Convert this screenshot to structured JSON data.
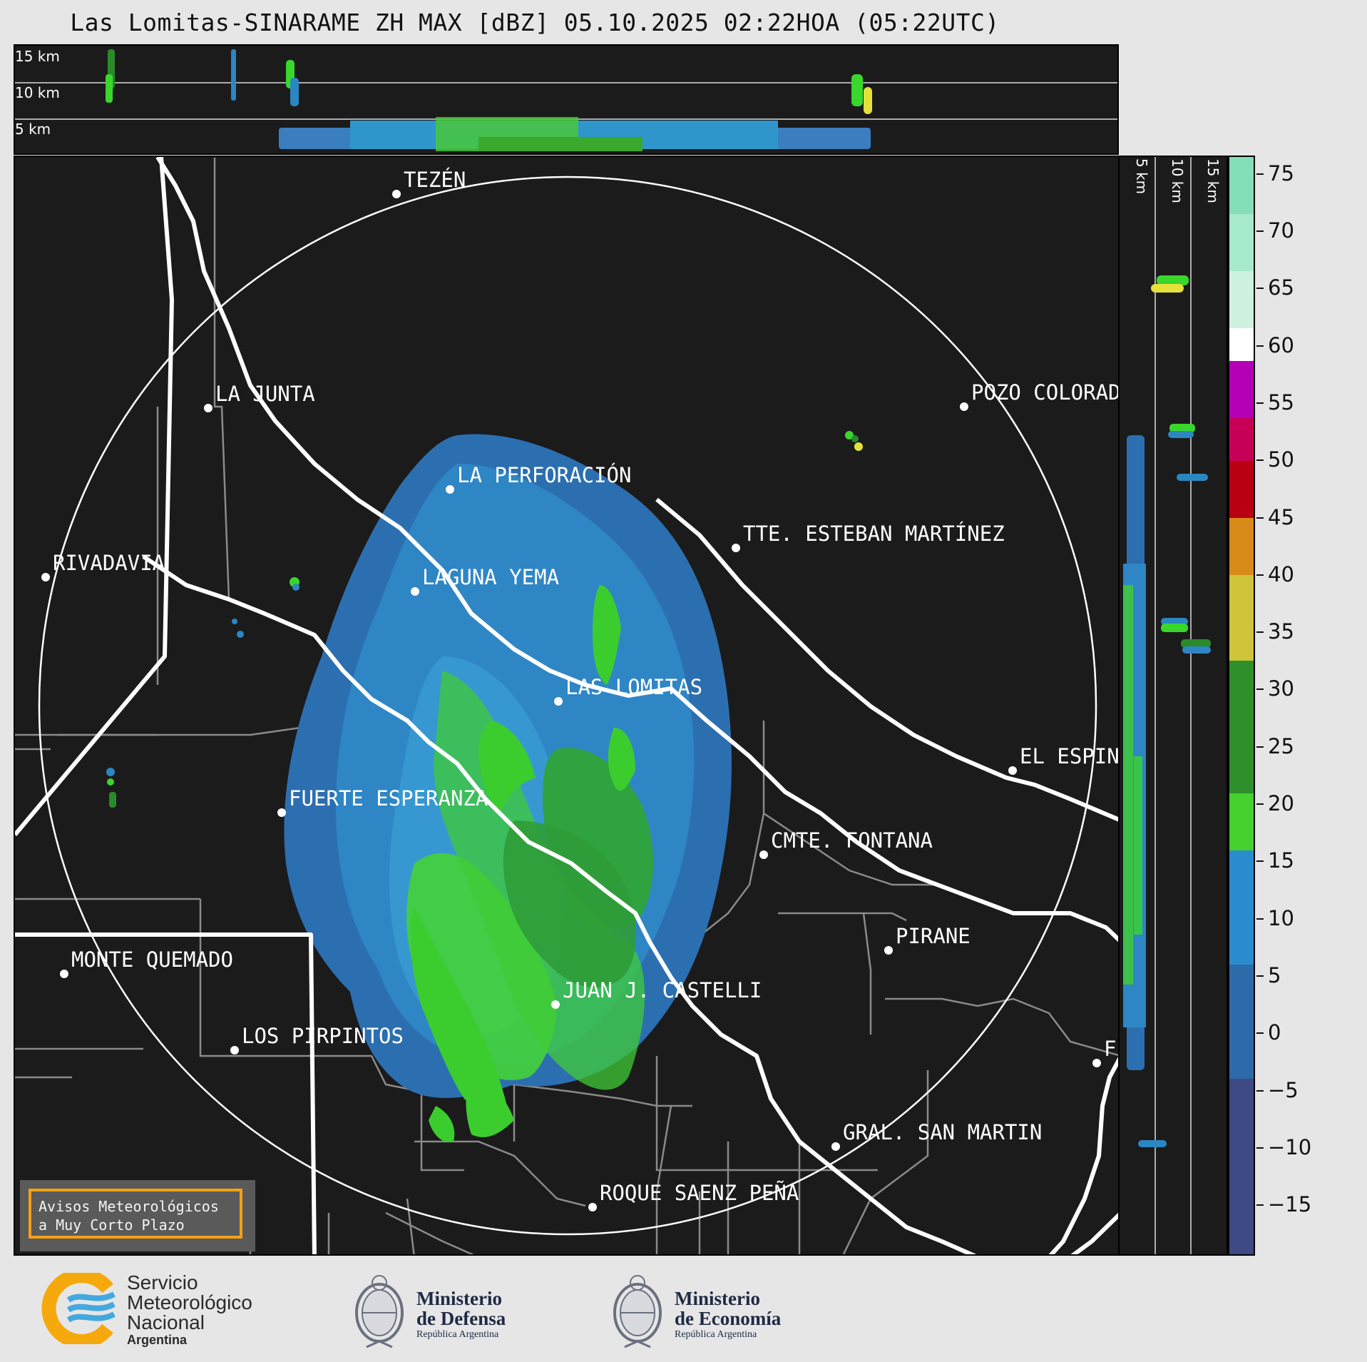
{
  "title": "Las Lomitas-SINARAME ZH MAX [dBZ] 05.10.2025 02:22HOA (05:22UTC)",
  "top_section": {
    "height_labels": [
      "15 km",
      "10 km",
      "5 km"
    ]
  },
  "right_section": {
    "height_labels": [
      "5 km",
      "10 km",
      "15 km"
    ]
  },
  "colorbar": {
    "ticks": [
      "75",
      "70",
      "65",
      "60",
      "55",
      "50",
      "45",
      "40",
      "35",
      "30",
      "25",
      "20",
      "15",
      "10",
      "5",
      "0",
      "−5",
      "−10",
      "−15"
    ]
  },
  "cities": [
    {
      "name": "TEZÉN"
    },
    {
      "name": "LA JUNTA"
    },
    {
      "name": "POZO COLORAD"
    },
    {
      "name": "LA PERFORACIÓN"
    },
    {
      "name": "TTE. ESTEBAN MARTÍNEZ"
    },
    {
      "name": "RIVADAVIA"
    },
    {
      "name": "LAGUNA YEMA"
    },
    {
      "name": "LAS LOMITAS"
    },
    {
      "name": "EL ESPIN"
    },
    {
      "name": "FUERTE ESPERANZA"
    },
    {
      "name": "CMTE. FONTANA"
    },
    {
      "name": "PIRANE"
    },
    {
      "name": "MONTE QUEMADO"
    },
    {
      "name": "JUAN J. CASTELLI"
    },
    {
      "name": "LOS PIRPINTOS"
    },
    {
      "name": "F"
    },
    {
      "name": "GRAL. SAN MARTIN"
    },
    {
      "name": "ROQUE SAENZ PEÑA"
    }
  ],
  "avisos": {
    "line1": "Avisos Meteorológicos",
    "line2": "a Muy Corto Plazo"
  },
  "footer": {
    "smn": {
      "line1": "Servicio",
      "line2": "Meteorológico",
      "line3": "Nacional",
      "line4": "Argentina"
    },
    "defensa": {
      "line1": "Ministerio",
      "line2": "de Defensa",
      "line3": "República Argentina"
    },
    "economia": {
      "line1": "Ministerio",
      "line2": "de Economía",
      "line3": "República Argentina"
    }
  },
  "colors": {
    "panel_bg": "#1b1b1b",
    "page_bg": "#e6e6e6",
    "echo_blue": "#2a87c2",
    "echo_green": "#39d62c",
    "border_white": "#ffffff",
    "aviso_border": "#f3a116"
  }
}
